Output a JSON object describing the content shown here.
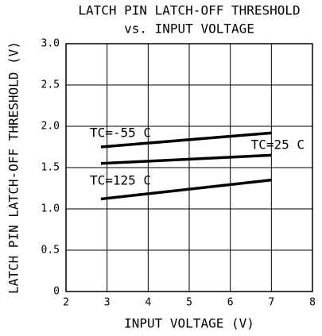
{
  "chart_data": {
    "type": "line",
    "title": "LATCH PIN LATCH-OFF THRESHOLD",
    "subtitle": "vs. INPUT VOLTAGE",
    "x_label": "INPUT VOLTAGE (V)",
    "y_label": "LATCH PIN LATCH-OFF THRESHOLD (V)",
    "x": [
      2.85,
      7
    ],
    "series": [
      {
        "name": "TC=-55 C",
        "color": "#000000",
        "values": [
          1.75,
          1.92
        ]
      },
      {
        "name": "TC=25 C",
        "color": "#000000",
        "values": [
          1.55,
          1.65
        ]
      },
      {
        "name": "TC=125 C",
        "color": "#000000",
        "values": [
          1.12,
          1.35
        ]
      }
    ],
    "xlim": [
      2,
      8
    ],
    "xticks": [
      2,
      3,
      4,
      5,
      6,
      7,
      8
    ],
    "ylim": [
      0,
      3
    ],
    "yticks": [
      0,
      0.5,
      {
        "value": 1,
        "label": "1.0"
      },
      1.5,
      {
        "value": 2,
        "label": "2.0"
      },
      2.5,
      {
        "value": 3,
        "label": "3.0"
      }
    ],
    "grid": true
  }
}
